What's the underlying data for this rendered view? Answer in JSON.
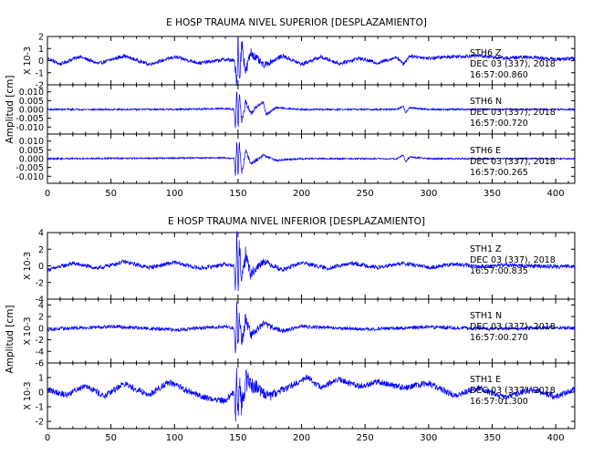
{
  "chart_data": [
    {
      "type": "line",
      "title": "E HOSP TRAUMA NIVEL SUPERIOR [DESPLAZAMIENTO]",
      "ylabel": "Amplitud [cm]",
      "xlim": [
        0,
        415
      ],
      "xticks": [
        0,
        50,
        100,
        150,
        200,
        250,
        300,
        350,
        400
      ],
      "line_color": "#0000ff",
      "traces": [
        {
          "scale_label": "X 10-3",
          "ylim": [
            -2,
            2
          ],
          "yticks": [
            2,
            1,
            0,
            -1,
            -2
          ],
          "info": [
            "STH6   Z",
            "DEC 03 (337), 2018",
            "16:57:00.860"
          ],
          "anchors": [
            [
              0,
              0.2
            ],
            [
              10,
              -0.3
            ],
            [
              25,
              0.35
            ],
            [
              40,
              -0.25
            ],
            [
              60,
              0.4
            ],
            [
              80,
              -0.3
            ],
            [
              100,
              0.3
            ],
            [
              120,
              -0.2
            ],
            [
              140,
              0.1
            ],
            [
              147,
              0
            ],
            [
              149,
              -2.3
            ],
            [
              150,
              2.2
            ],
            [
              151,
              -1.6
            ],
            [
              153,
              1.5
            ],
            [
              156,
              -1.0
            ],
            [
              160,
              0.7
            ],
            [
              170,
              -0.4
            ],
            [
              185,
              0.4
            ],
            [
              200,
              -0.3
            ],
            [
              215,
              0.3
            ],
            [
              230,
              -0.25
            ],
            [
              245,
              0.2
            ],
            [
              260,
              -0.2
            ],
            [
              275,
              0.3
            ],
            [
              280,
              -0.3
            ],
            [
              285,
              0.4
            ],
            [
              300,
              0.2
            ],
            [
              320,
              0.35
            ],
            [
              340,
              0.4
            ],
            [
              360,
              0.2
            ],
            [
              380,
              0.3
            ],
            [
              400,
              0.1
            ],
            [
              415,
              0.2
            ]
          ],
          "noise": 0.28
        },
        {
          "scale_label": "",
          "ylim": [
            -0.014,
            0.014
          ],
          "yticks": [
            0.01,
            0.005,
            0.0,
            -0.005,
            -0.01
          ],
          "ytick_labels": [
            "0.010",
            "0.005",
            "0.000",
            "-0.005",
            "-0.010"
          ],
          "info": [
            "STH6   N",
            "DEC 03 (337), 2018",
            "16:57:00.720"
          ],
          "anchors": [
            [
              0,
              0
            ],
            [
              100,
              0
            ],
            [
              140,
              0.0005
            ],
            [
              147,
              0
            ],
            [
              148,
              -0.012
            ],
            [
              149,
              0.013
            ],
            [
              150,
              -0.011
            ],
            [
              151,
              0.01
            ],
            [
              153,
              -0.008
            ],
            [
              156,
              0.005
            ],
            [
              160,
              -0.003
            ],
            [
              165,
              0.002
            ],
            [
              170,
              0.004
            ],
            [
              172,
              -0.003
            ],
            [
              180,
              0.001
            ],
            [
              200,
              0
            ],
            [
              275,
              0
            ],
            [
              280,
              0.002
            ],
            [
              282,
              -0.002
            ],
            [
              285,
              0.001
            ],
            [
              300,
              0
            ],
            [
              415,
              0
            ]
          ],
          "noise": 0.0009
        },
        {
          "scale_label": "",
          "ylim": [
            -0.014,
            0.014
          ],
          "yticks": [
            0.01,
            0.005,
            0.0,
            -0.005,
            -0.01
          ],
          "ytick_labels": [
            "0.010",
            "0.005",
            "0.000",
            "-0.005",
            "-0.010"
          ],
          "info": [
            "STH6   E",
            "DEC 03 (337), 2018",
            "16:57:00.265"
          ],
          "anchors": [
            [
              0,
              0
            ],
            [
              140,
              0.0005
            ],
            [
              147,
              0
            ],
            [
              148,
              -0.011
            ],
            [
              149,
              0.013
            ],
            [
              150,
              -0.012
            ],
            [
              151,
              0.01
            ],
            [
              153,
              -0.008
            ],
            [
              156,
              0.005
            ],
            [
              160,
              -0.003
            ],
            [
              170,
              0.002
            ],
            [
              180,
              -0.001
            ],
            [
              200,
              0
            ],
            [
              275,
              0
            ],
            [
              280,
              0.002
            ],
            [
              282,
              -0.002
            ],
            [
              285,
              0.001
            ],
            [
              300,
              0
            ],
            [
              415,
              0
            ]
          ],
          "noise": 0.0008
        }
      ]
    },
    {
      "type": "line",
      "title": "E HOSP TRAUMA NIVEL INFERIOR [DESPLAZAMIENTO]",
      "ylabel": "Amplitud [cm]",
      "xlim": [
        0,
        415
      ],
      "xticks": [
        0,
        50,
        100,
        150,
        200,
        250,
        300,
        350,
        400
      ],
      "line_color": "#0000ff",
      "traces": [
        {
          "scale_label": "X 10-3",
          "ylim": [
            -4,
            4
          ],
          "yticks": [
            4,
            2,
            0,
            -2,
            -4
          ],
          "info": [
            "STH1   Z",
            "DEC 03 (337), 2018",
            "16:57:00.835"
          ],
          "anchors": [
            [
              0,
              -0.5
            ],
            [
              20,
              0.3
            ],
            [
              40,
              -0.3
            ],
            [
              60,
              0.5
            ],
            [
              80,
              -0.2
            ],
            [
              100,
              0.4
            ],
            [
              120,
              -0.3
            ],
            [
              140,
              0.2
            ],
            [
              147,
              0
            ],
            [
              148,
              -3.5
            ],
            [
              149,
              3.8
            ],
            [
              150,
              -3.2
            ],
            [
              151,
              2.5
            ],
            [
              153,
              -2.0
            ],
            [
              156,
              1.5
            ],
            [
              160,
              -1.0
            ],
            [
              170,
              0.6
            ],
            [
              185,
              -0.5
            ],
            [
              200,
              0.4
            ],
            [
              220,
              -0.3
            ],
            [
              240,
              0.3
            ],
            [
              260,
              -0.2
            ],
            [
              280,
              0.3
            ],
            [
              300,
              -0.2
            ],
            [
              320,
              0.2
            ],
            [
              340,
              -0.1
            ],
            [
              360,
              0.1
            ],
            [
              380,
              0
            ],
            [
              400,
              -0.1
            ],
            [
              415,
              0
            ]
          ],
          "noise": 0.45
        },
        {
          "scale_label": "X 10-3",
          "ylim": [
            -6,
            5
          ],
          "yticks": [
            4,
            2,
            0,
            -2,
            -4,
            -6
          ],
          "info": [
            "STH1   N",
            "DEC 03 (337), 2018",
            "16:57:00.270"
          ],
          "anchors": [
            [
              0,
              -0.2
            ],
            [
              50,
              0.3
            ],
            [
              100,
              -0.3
            ],
            [
              140,
              0.3
            ],
            [
              147,
              0
            ],
            [
              148,
              -5.0
            ],
            [
              149,
              4.5
            ],
            [
              150,
              -4.0
            ],
            [
              151,
              3.0
            ],
            [
              153,
              -2.5
            ],
            [
              156,
              1.8
            ],
            [
              160,
              -1.2
            ],
            [
              170,
              0.8
            ],
            [
              185,
              -0.5
            ],
            [
              200,
              0.3
            ],
            [
              250,
              -0.2
            ],
            [
              300,
              0.2
            ],
            [
              350,
              -0.1
            ],
            [
              400,
              0.1
            ],
            [
              415,
              0
            ]
          ],
          "noise": 0.55
        },
        {
          "scale_label": "X 10-3",
          "ylim": [
            -2.5,
            2
          ],
          "yticks": [
            1,
            0,
            -1,
            -2
          ],
          "info": [
            "STH1   E",
            "DEC 03 (337), 2018",
            "16:57:01.300"
          ],
          "anchors": [
            [
              0,
              0.2
            ],
            [
              15,
              -0.2
            ],
            [
              30,
              0.5
            ],
            [
              45,
              -0.3
            ],
            [
              60,
              0.6
            ],
            [
              80,
              -0.2
            ],
            [
              95,
              0.7
            ],
            [
              110,
              0.1
            ],
            [
              125,
              -0.4
            ],
            [
              140,
              -0.6
            ],
            [
              147,
              0
            ],
            [
              148,
              -1.9
            ],
            [
              149,
              1.6
            ],
            [
              150,
              -1.5
            ],
            [
              151,
              1.2
            ],
            [
              153,
              -1.0
            ],
            [
              156,
              0.8
            ],
            [
              165,
              0.3
            ],
            [
              175,
              -0.3
            ],
            [
              190,
              0.4
            ],
            [
              205,
              1.0
            ],
            [
              215,
              0.3
            ],
            [
              230,
              0.9
            ],
            [
              245,
              0.4
            ],
            [
              260,
              0.7
            ],
            [
              280,
              0.3
            ],
            [
              300,
              0.6
            ],
            [
              320,
              -0.2
            ],
            [
              340,
              0.3
            ],
            [
              360,
              -0.4
            ],
            [
              380,
              0.2
            ],
            [
              400,
              -0.3
            ],
            [
              415,
              0.2
            ]
          ],
          "noise": 0.4
        }
      ]
    }
  ]
}
